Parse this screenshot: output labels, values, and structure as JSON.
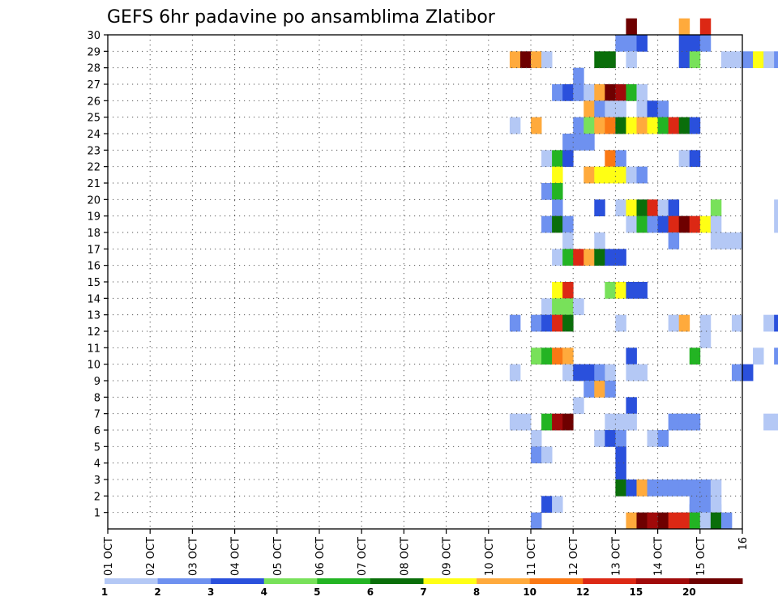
{
  "chart_data": {
    "type": "heatmap",
    "title": "GEFS 6hr padavine po ansamblima Zlatibor",
    "xlabel": "",
    "ylabel": "",
    "x_ticks": [
      "01 OCT",
      "02 OCT",
      "03 OCT",
      "04 OCT",
      "05 OCT",
      "06 OCT",
      "07 OCT",
      "08 OCT",
      "09 OCT",
      "10 OCT",
      "11 OCT",
      "12 OCT",
      "13 OCT",
      "14 OCT",
      "15 OCT",
      "16"
    ],
    "y_ticks": [
      "1",
      "2",
      "3",
      "4",
      "5",
      "6",
      "7",
      "8",
      "9",
      "10",
      "11",
      "12",
      "13",
      "14",
      "15",
      "16",
      "17",
      "18",
      "19",
      "20",
      "21",
      "22",
      "23",
      "24",
      "25",
      "26",
      "27",
      "28",
      "29",
      "30"
    ],
    "x_range_days": [
      0,
      15
    ],
    "y_range": [
      0,
      30
    ],
    "step_hours": 6,
    "grid": "dotted",
    "colorbar": {
      "position": "bottom",
      "labels": [
        "1",
        "2",
        "3",
        "4",
        "5",
        "6",
        "7",
        "8",
        "10",
        "12",
        "15",
        "20"
      ],
      "colors": [
        "#b4c8f5",
        "#6e91f0",
        "#2a50dc",
        "#78e15a",
        "#23b423",
        "#0a6e0a",
        "#ffff14",
        "#ffaa3c",
        "#fa7814",
        "#dc2814",
        "#a00a0a",
        "#6e0000"
      ]
    },
    "cells": [
      [
        12.25,
        30,
        11
      ],
      [
        13.5,
        30,
        7
      ],
      [
        14.0,
        30,
        9
      ],
      [
        21.75,
        30,
        2
      ],
      [
        12.0,
        29,
        1
      ],
      [
        12.25,
        29,
        1
      ],
      [
        12.5,
        29,
        2
      ],
      [
        13.5,
        29,
        2
      ],
      [
        13.75,
        29,
        2
      ],
      [
        14.0,
        29,
        1
      ],
      [
        21.0,
        29,
        2
      ],
      [
        21.25,
        29,
        2
      ],
      [
        21.5,
        29,
        3
      ],
      [
        21.75,
        29,
        2
      ],
      [
        22.0,
        29,
        0
      ],
      [
        22.25,
        29,
        0
      ],
      [
        22.5,
        29,
        10
      ],
      [
        22.75,
        29,
        9
      ],
      [
        23.0,
        29,
        11
      ],
      [
        23.25,
        29,
        1
      ],
      [
        29.75,
        29,
        1
      ],
      [
        9.5,
        28,
        7
      ],
      [
        9.75,
        28,
        11
      ],
      [
        10.0,
        28,
        7
      ],
      [
        10.25,
        28,
        0
      ],
      [
        11.5,
        28,
        5
      ],
      [
        11.75,
        28,
        5
      ],
      [
        12.25,
        28,
        0
      ],
      [
        13.5,
        28,
        2
      ],
      [
        13.75,
        28,
        3
      ],
      [
        14.5,
        28,
        0
      ],
      [
        14.75,
        28,
        0
      ],
      [
        15.0,
        28,
        1
      ],
      [
        15.25,
        28,
        6
      ],
      [
        15.5,
        28,
        0
      ],
      [
        15.75,
        28,
        1
      ],
      [
        16.0,
        28,
        4
      ],
      [
        16.25,
        28,
        4
      ],
      [
        16.5,
        28,
        1
      ],
      [
        17.5,
        28,
        0
      ],
      [
        17.75,
        28,
        0
      ],
      [
        11.0,
        27,
        1
      ],
      [
        10.5,
        26,
        1
      ],
      [
        10.75,
        26,
        2
      ],
      [
        11.0,
        26,
        1
      ],
      [
        11.25,
        26,
        0
      ],
      [
        11.5,
        26,
        7
      ],
      [
        11.75,
        26,
        11
      ],
      [
        12.0,
        26,
        10
      ],
      [
        12.25,
        26,
        4
      ],
      [
        12.5,
        26,
        0
      ],
      [
        11.25,
        25,
        7
      ],
      [
        11.5,
        25,
        1
      ],
      [
        11.75,
        25,
        0
      ],
      [
        12.0,
        25,
        0
      ],
      [
        12.5,
        25,
        0
      ],
      [
        12.75,
        25,
        2
      ],
      [
        13.0,
        25,
        1
      ],
      [
        9.5,
        24,
        0
      ],
      [
        10.0,
        24,
        7
      ],
      [
        11.0,
        24,
        1
      ],
      [
        11.25,
        24,
        3
      ],
      [
        11.5,
        24,
        7
      ],
      [
        11.75,
        24,
        8
      ],
      [
        12.0,
        24,
        5
      ],
      [
        12.25,
        24,
        6
      ],
      [
        12.5,
        24,
        7
      ],
      [
        12.75,
        24,
        6
      ],
      [
        13.0,
        24,
        4
      ],
      [
        13.25,
        24,
        9
      ],
      [
        13.5,
        24,
        5
      ],
      [
        13.75,
        24,
        2
      ],
      [
        10.75,
        23,
        1
      ],
      [
        11.0,
        23,
        1
      ],
      [
        11.25,
        23,
        1
      ],
      [
        10.25,
        22,
        0
      ],
      [
        10.5,
        22,
        4
      ],
      [
        10.75,
        22,
        2
      ],
      [
        11.75,
        22,
        8
      ],
      [
        12.0,
        22,
        1
      ],
      [
        13.5,
        22,
        0
      ],
      [
        13.75,
        22,
        2
      ],
      [
        20.0,
        22,
        2
      ],
      [
        10.5,
        21,
        6
      ],
      [
        11.25,
        21,
        7
      ],
      [
        11.5,
        21,
        6
      ],
      [
        11.75,
        21,
        6
      ],
      [
        12.0,
        21,
        6
      ],
      [
        12.25,
        21,
        0
      ],
      [
        12.5,
        21,
        1
      ],
      [
        10.25,
        20,
        1
      ],
      [
        10.5,
        20,
        4
      ],
      [
        19.25,
        20,
        0
      ],
      [
        19.5,
        20,
        0
      ],
      [
        10.5,
        19,
        1
      ],
      [
        11.5,
        19,
        2
      ],
      [
        12.0,
        19,
        0
      ],
      [
        12.25,
        19,
        6
      ],
      [
        12.5,
        19,
        5
      ],
      [
        12.75,
        19,
        9
      ],
      [
        13.0,
        19,
        0
      ],
      [
        13.25,
        19,
        2
      ],
      [
        14.25,
        19,
        3
      ],
      [
        15.75,
        19,
        0
      ],
      [
        16.0,
        19,
        0
      ],
      [
        10.25,
        18,
        1
      ],
      [
        10.5,
        18,
        5
      ],
      [
        10.75,
        18,
        1
      ],
      [
        12.25,
        18,
        0
      ],
      [
        12.5,
        18,
        4
      ],
      [
        12.75,
        18,
        1
      ],
      [
        13.0,
        18,
        2
      ],
      [
        13.25,
        18,
        9
      ],
      [
        13.5,
        18,
        11
      ],
      [
        13.75,
        18,
        9
      ],
      [
        14.0,
        18,
        6
      ],
      [
        14.25,
        18,
        0
      ],
      [
        15.75,
        18,
        0
      ],
      [
        16.0,
        18,
        0
      ],
      [
        16.25,
        18,
        0
      ],
      [
        10.75,
        17,
        0
      ],
      [
        11.5,
        17,
        0
      ],
      [
        13.25,
        17,
        1
      ],
      [
        14.25,
        17,
        0
      ],
      [
        14.5,
        17,
        0
      ],
      [
        14.75,
        17,
        0
      ],
      [
        17.0,
        17,
        0
      ],
      [
        17.25,
        17,
        1
      ],
      [
        17.5,
        17,
        0
      ],
      [
        17.75,
        17,
        1
      ],
      [
        19.25,
        17,
        0
      ],
      [
        10.5,
        16,
        0
      ],
      [
        10.75,
        16,
        4
      ],
      [
        11.0,
        16,
        9
      ],
      [
        11.25,
        16,
        7
      ],
      [
        11.5,
        16,
        5
      ],
      [
        11.75,
        16,
        2
      ],
      [
        12.0,
        16,
        2
      ],
      [
        10.5,
        14,
        6
      ],
      [
        10.75,
        14,
        9
      ],
      [
        11.75,
        14,
        3
      ],
      [
        12.0,
        14,
        6
      ],
      [
        12.25,
        14,
        2
      ],
      [
        12.5,
        14,
        2
      ],
      [
        10.25,
        13,
        0
      ],
      [
        10.5,
        13,
        3
      ],
      [
        10.75,
        13,
        3
      ],
      [
        11.0,
        13,
        0
      ],
      [
        9.5,
        12,
        1
      ],
      [
        10.0,
        12,
        1
      ],
      [
        10.25,
        12,
        2
      ],
      [
        10.5,
        12,
        9
      ],
      [
        10.75,
        12,
        5
      ],
      [
        12.0,
        12,
        0
      ],
      [
        13.25,
        12,
        0
      ],
      [
        13.5,
        12,
        7
      ],
      [
        14.0,
        12,
        0
      ],
      [
        14.75,
        12,
        0
      ],
      [
        15.5,
        12,
        0
      ],
      [
        15.75,
        12,
        2
      ],
      [
        17.25,
        12,
        1
      ],
      [
        17.5,
        12,
        1
      ],
      [
        14.0,
        11,
        0
      ],
      [
        10.0,
        10,
        3
      ],
      [
        10.25,
        10,
        4
      ],
      [
        10.5,
        10,
        8
      ],
      [
        10.75,
        10,
        7
      ],
      [
        12.25,
        10,
        2
      ],
      [
        13.75,
        10,
        4
      ],
      [
        15.25,
        10,
        0
      ],
      [
        15.75,
        10,
        1
      ],
      [
        9.5,
        9,
        0
      ],
      [
        10.75,
        9,
        0
      ],
      [
        11.0,
        9,
        2
      ],
      [
        11.25,
        9,
        2
      ],
      [
        11.5,
        9,
        1
      ],
      [
        11.75,
        9,
        0
      ],
      [
        12.25,
        9,
        0
      ],
      [
        12.5,
        9,
        0
      ],
      [
        14.75,
        9,
        1
      ],
      [
        15.0,
        9,
        2
      ],
      [
        17.5,
        9,
        2
      ],
      [
        17.75,
        9,
        11
      ],
      [
        18.0,
        9,
        11
      ],
      [
        18.25,
        9,
        7
      ],
      [
        18.5,
        9,
        2
      ],
      [
        19.25,
        9,
        0
      ],
      [
        19.5,
        9,
        0
      ],
      [
        20.0,
        9,
        2
      ],
      [
        23.25,
        9,
        1
      ],
      [
        11.25,
        8,
        1
      ],
      [
        11.5,
        8,
        7
      ],
      [
        11.75,
        8,
        1
      ],
      [
        19.25,
        8,
        2
      ],
      [
        19.5,
        8,
        3
      ],
      [
        19.75,
        8,
        2
      ],
      [
        11.0,
        7,
        0
      ],
      [
        12.25,
        7,
        2
      ],
      [
        17.5,
        7,
        3
      ],
      [
        17.75,
        7,
        4
      ],
      [
        18.25,
        7,
        0
      ],
      [
        18.75,
        7,
        0
      ],
      [
        9.5,
        6,
        0
      ],
      [
        9.75,
        6,
        0
      ],
      [
        10.25,
        6,
        4
      ],
      [
        10.5,
        6,
        10
      ],
      [
        10.75,
        6,
        11
      ],
      [
        11.75,
        6,
        0
      ],
      [
        12.0,
        6,
        0
      ],
      [
        12.25,
        6,
        0
      ],
      [
        13.25,
        6,
        1
      ],
      [
        13.5,
        6,
        1
      ],
      [
        13.75,
        6,
        1
      ],
      [
        15.5,
        6,
        0
      ],
      [
        15.75,
        6,
        0
      ],
      [
        16.0,
        6,
        0
      ],
      [
        18.5,
        6,
        3
      ],
      [
        19.5,
        6,
        5
      ],
      [
        19.75,
        6,
        2
      ],
      [
        20.0,
        6,
        1
      ],
      [
        20.25,
        6,
        3
      ],
      [
        21.75,
        6,
        3
      ],
      [
        22.0,
        6,
        1
      ],
      [
        10.0,
        5,
        0
      ],
      [
        11.5,
        5,
        0
      ],
      [
        11.75,
        5,
        2
      ],
      [
        12.0,
        5,
        1
      ],
      [
        12.75,
        5,
        0
      ],
      [
        13.0,
        5,
        1
      ],
      [
        17.25,
        5,
        0
      ],
      [
        17.5,
        5,
        0
      ],
      [
        18.5,
        5,
        0
      ],
      [
        10.0,
        4,
        1
      ],
      [
        10.25,
        4,
        0
      ],
      [
        12.0,
        4,
        2
      ],
      [
        20.75,
        4,
        1
      ],
      [
        21.0,
        4,
        2
      ],
      [
        12.0,
        3,
        2
      ],
      [
        12.0,
        2,
        5
      ],
      [
        12.25,
        2,
        2
      ],
      [
        12.5,
        2,
        7
      ],
      [
        12.75,
        2,
        1
      ],
      [
        13.0,
        2,
        1
      ],
      [
        13.25,
        2,
        1
      ],
      [
        13.5,
        2,
        1
      ],
      [
        13.75,
        2,
        1
      ],
      [
        14.0,
        2,
        1
      ],
      [
        14.25,
        2,
        0
      ],
      [
        10.25,
        1,
        2
      ],
      [
        10.5,
        1,
        0
      ],
      [
        13.75,
        1,
        1
      ],
      [
        14.0,
        1,
        1
      ],
      [
        14.25,
        1,
        0
      ],
      [
        16.75,
        1,
        0
      ],
      [
        13.75,
        0.5,
        1
      ],
      [
        14.0,
        0.5,
        1
      ],
      [
        14.25,
        0.5,
        0
      ],
      [
        10.0,
        0,
        1
      ],
      [
        12.25,
        0,
        7
      ],
      [
        12.5,
        0,
        11
      ],
      [
        12.75,
        0,
        10
      ],
      [
        13.0,
        0,
        11
      ],
      [
        13.25,
        0,
        9
      ],
      [
        13.5,
        0,
        9
      ],
      [
        13.75,
        0,
        4
      ],
      [
        14.0,
        0,
        0
      ],
      [
        14.25,
        0,
        5
      ],
      [
        14.5,
        0,
        1
      ],
      [
        16.75,
        0,
        0
      ],
      [
        18.0,
        0,
        0
      ],
      [
        18.75,
        0,
        0
      ]
    ]
  }
}
